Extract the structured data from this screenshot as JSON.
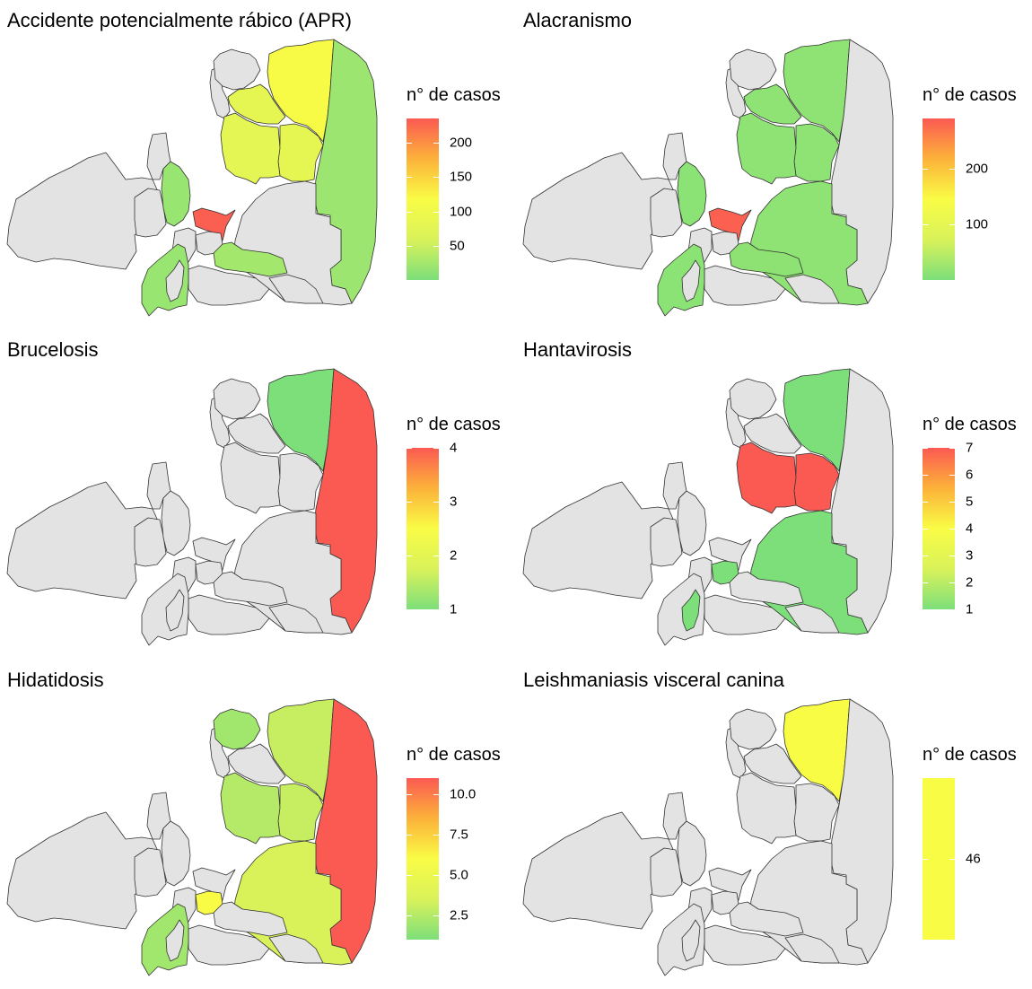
{
  "legend_title": "n° de casos",
  "colors": {
    "no_data": "#e3e3e3",
    "border": "#333333",
    "low": "#7ddf7a",
    "mid": "#f9fc45",
    "high": "#fb5a52",
    "gradient": [
      "#7ddf7a",
      "#d9f25a",
      "#f9fc45",
      "#fcb23a",
      "#fb5a52"
    ]
  },
  "panels": [
    {
      "title": "Accidente potencialmente rábico (APR)",
      "legend": {
        "min": 1,
        "max": 235,
        "ticks": [
          {
            "v": 50,
            "label": "50"
          },
          {
            "v": 100,
            "label": "100"
          },
          {
            "v": 150,
            "label": "150"
          },
          {
            "v": 200,
            "label": "200"
          }
        ]
      },
      "regions": {
        "north_top": 115,
        "north_mid": 82,
        "north_center": 80,
        "northwest_strip": 82,
        "east": 20,
        "center": 232,
        "west_center": 18,
        "southwest": 18,
        "south_center": 25
      }
    },
    {
      "title": "Alacranismo",
      "legend": {
        "min": 1,
        "max": 290,
        "ticks": [
          {
            "v": 100,
            "label": "100"
          },
          {
            "v": 200,
            "label": "200"
          }
        ]
      },
      "regions": {
        "east_big": 15,
        "north_top": 15,
        "north_mid": 15,
        "north_center": 15,
        "northwest_strip": 15,
        "center": 285,
        "west_center": 12,
        "southwest": 12,
        "south_center": 14,
        "east_south": 15
      }
    },
    {
      "title": "Brucelosis",
      "legend": {
        "min": 1,
        "max": 4,
        "ticks": [
          {
            "v": 1,
            "label": "1"
          },
          {
            "v": 2,
            "label": "2"
          },
          {
            "v": 3,
            "label": "3"
          },
          {
            "v": 4,
            "label": "4"
          }
        ]
      },
      "regions": {
        "north_top": 1,
        "east": 4
      }
    },
    {
      "title": "Hantavirosis",
      "legend": {
        "min": 1,
        "max": 7,
        "ticks": [
          {
            "v": 1,
            "label": "1"
          },
          {
            "v": 2,
            "label": "2"
          },
          {
            "v": 3,
            "label": "3"
          },
          {
            "v": 4,
            "label": "4"
          },
          {
            "v": 5,
            "label": "5"
          },
          {
            "v": 6,
            "label": "6"
          },
          {
            "v": 7,
            "label": "7"
          }
        ]
      },
      "regions": {
        "north_top": 1,
        "north_center": 7,
        "north_mid": 7,
        "east_south": 1,
        "center_small": 1,
        "southwest_small": 1
      }
    },
    {
      "title": "Hidatidosis",
      "legend": {
        "min": 1,
        "max": 11,
        "ticks": [
          {
            "v": 2.5,
            "label": "2.5"
          },
          {
            "v": 5.0,
            "label": "5.0"
          },
          {
            "v": 7.5,
            "label": "7.5"
          },
          {
            "v": 10.0,
            "label": "10.0"
          }
        ]
      },
      "regions": {
        "northwest_top": 2,
        "north_top": 3,
        "north_mid": 3,
        "north_center": 2.5,
        "east": 11,
        "east_south": 3.5,
        "center_small": 6,
        "southwest": 2
      }
    },
    {
      "title": "Leishmaniasis visceral canina",
      "legend": {
        "min": 45,
        "max": 47,
        "ticks": [
          {
            "v": 46,
            "label": "46"
          }
        ],
        "solid": true
      },
      "regions": {
        "north_top": 46
      }
    }
  ]
}
